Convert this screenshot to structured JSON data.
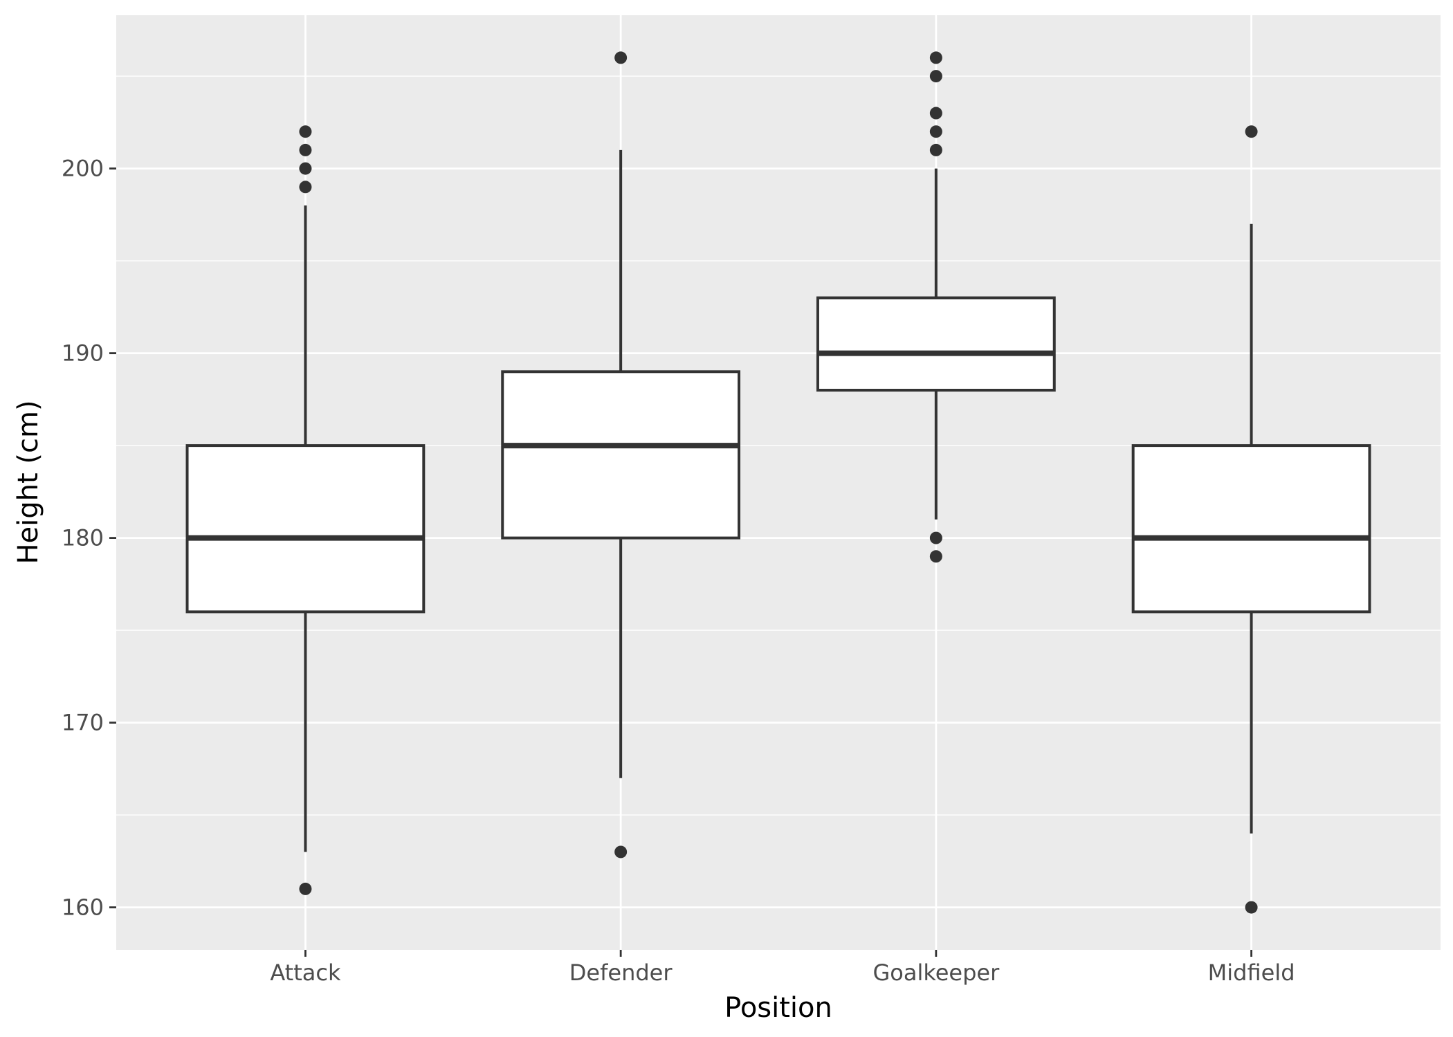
{
  "chart_data": {
    "type": "boxplot",
    "title": "",
    "xlabel": "Position",
    "ylabel": "Height (cm)",
    "categories": [
      "Attack",
      "Defender",
      "Goalkeeper",
      "Midfield"
    ],
    "ylim": [
      157.7,
      208.3
    ],
    "y_ticks": [
      160,
      170,
      180,
      190,
      200
    ],
    "y_tick_labels": [
      "160",
      "170",
      "180",
      "190",
      "200"
    ],
    "grid": true,
    "legend": "none",
    "boxes": [
      {
        "category": "Attack",
        "whisker_low": 163,
        "q1": 176,
        "median": 180,
        "q3": 185,
        "whisker_high": 198,
        "outliers": [
          161,
          199,
          200,
          201,
          202
        ]
      },
      {
        "category": "Defender",
        "whisker_low": 167,
        "q1": 180,
        "median": 185,
        "q3": 189,
        "whisker_high": 201,
        "outliers": [
          163,
          206
        ]
      },
      {
        "category": "Goalkeeper",
        "whisker_low": 181,
        "q1": 188,
        "median": 190,
        "q3": 193,
        "whisker_high": 200,
        "outliers": [
          179,
          180,
          201,
          202,
          203,
          205,
          206
        ]
      },
      {
        "category": "Midfield",
        "whisker_low": 164,
        "q1": 176,
        "median": 180,
        "q3": 185,
        "whisker_high": 197,
        "outliers": [
          160,
          202
        ]
      }
    ],
    "colors": {
      "panel_background": "#EBEBEB",
      "grid": "#FFFFFF",
      "box_fill": "#FFFFFF",
      "box_line": "#333333",
      "tick_text": "#4D4D4D",
      "axis_title": "#000000"
    }
  }
}
